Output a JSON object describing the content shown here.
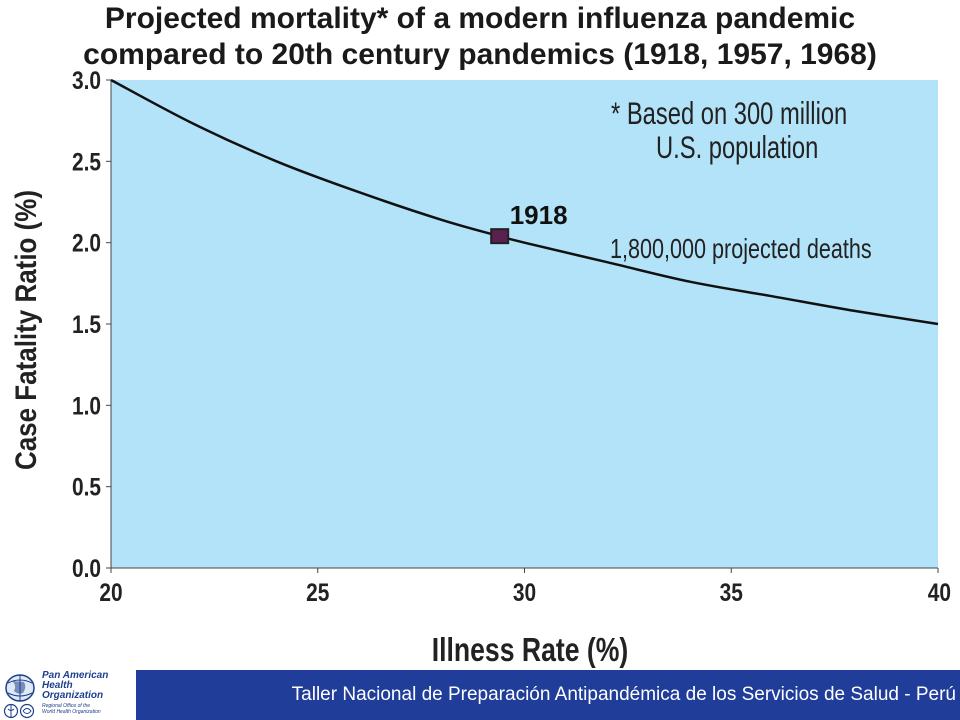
{
  "chart_data": {
    "type": "line",
    "title_line1": "Projected mortality* of a modern influenza pandemic",
    "title_line2": "compared to 20th century pandemics (1918, 1957, 1968)",
    "xlabel": "Illness Rate (%)",
    "ylabel": "Case Fatality Ratio (%)",
    "xlim": [
      20,
      40
    ],
    "ylim": [
      0,
      3
    ],
    "x_ticks": [
      "20",
      "25",
      "30",
      "35",
      "40"
    ],
    "y_ticks": [
      "0.0",
      "0.5",
      "1.0",
      "1.5",
      "2.0",
      "2.5",
      "3.0"
    ],
    "colors": {
      "plot_background": "#b3e3f8",
      "curve": "#111111",
      "marker_fill": "#5a2050",
      "marker_stroke": "#222222"
    },
    "series": [
      {
        "name": "projected deaths curve",
        "x": [
          20,
          22,
          24,
          26,
          28,
          29.4,
          30,
          32,
          34,
          36,
          38,
          40
        ],
        "y": [
          3.0,
          2.73,
          2.5,
          2.31,
          2.14,
          2.04,
          2.0,
          1.88,
          1.76,
          1.67,
          1.58,
          1.5
        ]
      }
    ],
    "points": [
      {
        "label": "1918",
        "x": 29.4,
        "y": 2.04,
        "annotation": "1,800,000 projected deaths"
      }
    ],
    "note_line1": "* Based on 300 million",
    "note_line2": "U.S. population"
  },
  "footer": {
    "text": "Taller Nacional de Preparación Antipandémica de los Servicios de Salud - Perú",
    "band_color": "#1f3d99"
  },
  "logo": {
    "line1": "Pan American",
    "line2": "Health",
    "line3": "Organization",
    "small1": "Regional Office of the",
    "small2": "World Health Organization"
  }
}
